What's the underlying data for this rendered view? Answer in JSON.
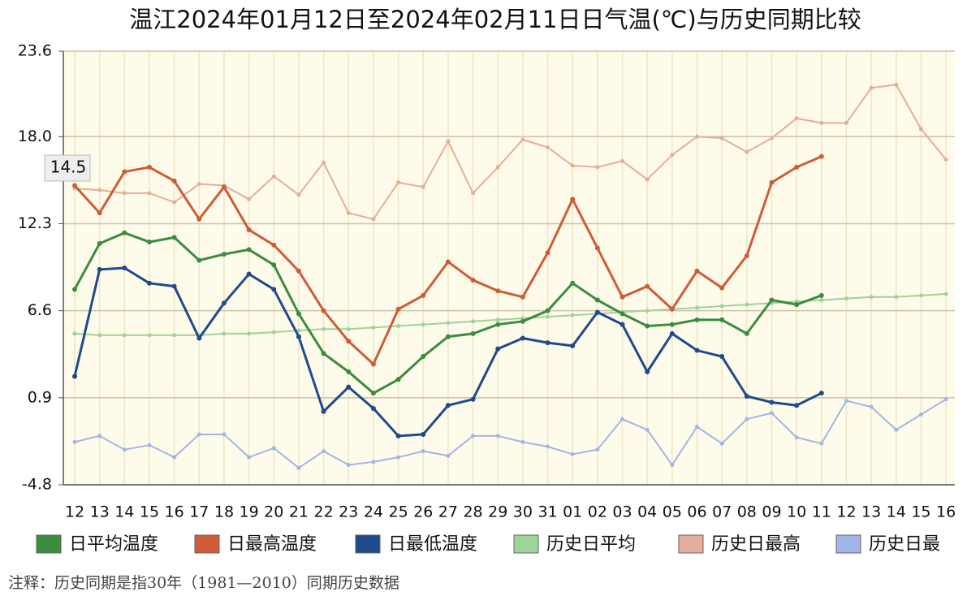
{
  "chart_data": {
    "type": "line",
    "title": "温江2024年01月12日至2024年02月11日日气温(℃)与历史同期比较",
    "note": "注释：历史同期是指30年（1981—2010）同期历史数据",
    "annotation": "14.5",
    "categories": [
      "12",
      "13",
      "14",
      "15",
      "16",
      "17",
      "18",
      "19",
      "20",
      "21",
      "22",
      "23",
      "24",
      "25",
      "26",
      "27",
      "28",
      "29",
      "30",
      "31",
      "01",
      "02",
      "03",
      "04",
      "05",
      "06",
      "07",
      "08",
      "09",
      "10",
      "11",
      "12",
      "13",
      "14",
      "15",
      "16"
    ],
    "ylim": [
      -4.8,
      23.6
    ],
    "yticks": [
      -4.8,
      0.9,
      6.6,
      12.3,
      {
        "value": 18,
        "label": "18.0"
      },
      23.6
    ],
    "grid": true,
    "series": [
      {
        "name": "日平均温度",
        "color": "#3a8c3f",
        "values": [
          8.0,
          11.0,
          11.7,
          11.1,
          11.4,
          9.9,
          10.3,
          10.6,
          9.6,
          6.4,
          3.8,
          2.6,
          1.2,
          2.1,
          3.6,
          4.9,
          5.1,
          5.7,
          5.9,
          6.6,
          8.4,
          7.3,
          6.4,
          5.6,
          5.7,
          6.0,
          6.0,
          5.1,
          7.3,
          7.0,
          7.6,
          null,
          null,
          null,
          null,
          null
        ]
      },
      {
        "name": "日最高温度",
        "color": "#cf5c36",
        "values": [
          14.8,
          13.0,
          15.7,
          16.0,
          15.1,
          12.6,
          14.7,
          11.9,
          10.9,
          9.2,
          6.6,
          4.6,
          3.1,
          6.7,
          7.6,
          9.8,
          8.6,
          7.9,
          7.5,
          10.4,
          13.9,
          10.7,
          7.5,
          8.2,
          6.7,
          9.2,
          8.1,
          10.2,
          15.0,
          16.0,
          16.7,
          null,
          null,
          null,
          null,
          null
        ]
      },
      {
        "name": "日最低温度",
        "color": "#1f4a8c",
        "values": [
          2.3,
          9.3,
          9.4,
          8.4,
          8.2,
          4.8,
          7.1,
          9.0,
          8.0,
          4.9,
          0.0,
          1.6,
          0.2,
          -1.6,
          -1.5,
          0.4,
          0.8,
          4.1,
          4.8,
          4.5,
          4.3,
          6.5,
          5.7,
          2.6,
          5.1,
          4.0,
          3.6,
          1.0,
          0.6,
          0.4,
          1.2,
          null,
          null,
          null,
          null,
          null
        ]
      },
      {
        "name": "历史日平均",
        "color": "#9dd498",
        "values": [
          5.1,
          5.0,
          5.0,
          5.0,
          5.0,
          5.0,
          5.1,
          5.1,
          5.2,
          5.3,
          5.4,
          5.4,
          5.5,
          5.6,
          5.7,
          5.8,
          5.9,
          6.0,
          6.1,
          6.2,
          6.3,
          6.4,
          6.5,
          6.6,
          6.7,
          6.8,
          6.9,
          7.0,
          7.1,
          7.2,
          7.3,
          7.4,
          7.5,
          7.5,
          7.6,
          7.7
        ]
      },
      {
        "name": "历史日最高",
        "color": "#e6ad9c",
        "values": [
          14.6,
          14.5,
          14.3,
          14.3,
          13.7,
          14.9,
          14.8,
          13.9,
          15.4,
          14.2,
          16.3,
          13.0,
          12.6,
          15.0,
          14.7,
          17.7,
          14.3,
          16.0,
          17.8,
          17.3,
          16.1,
          16.0,
          16.4,
          15.2,
          16.8,
          18.0,
          17.9,
          17.0,
          17.9,
          19.2,
          18.9,
          18.9,
          21.2,
          21.4,
          18.5,
          16.5
        ]
      },
      {
        "name": "历史日最",
        "color": "#a3b5e6",
        "values": [
          -2.0,
          -1.6,
          -2.5,
          -2.2,
          -3.0,
          -1.5,
          -1.5,
          -3.0,
          -2.4,
          -3.7,
          -2.6,
          -3.5,
          -3.3,
          -3.0,
          -2.6,
          -2.9,
          -1.6,
          -1.6,
          -2.0,
          -2.3,
          -2.8,
          -2.5,
          -0.5,
          -1.2,
          -3.5,
          -1.0,
          -2.1,
          -0.5,
          -0.1,
          -1.7,
          -2.1,
          0.7,
          0.3,
          -1.2,
          -0.2,
          0.8
        ]
      }
    ]
  }
}
